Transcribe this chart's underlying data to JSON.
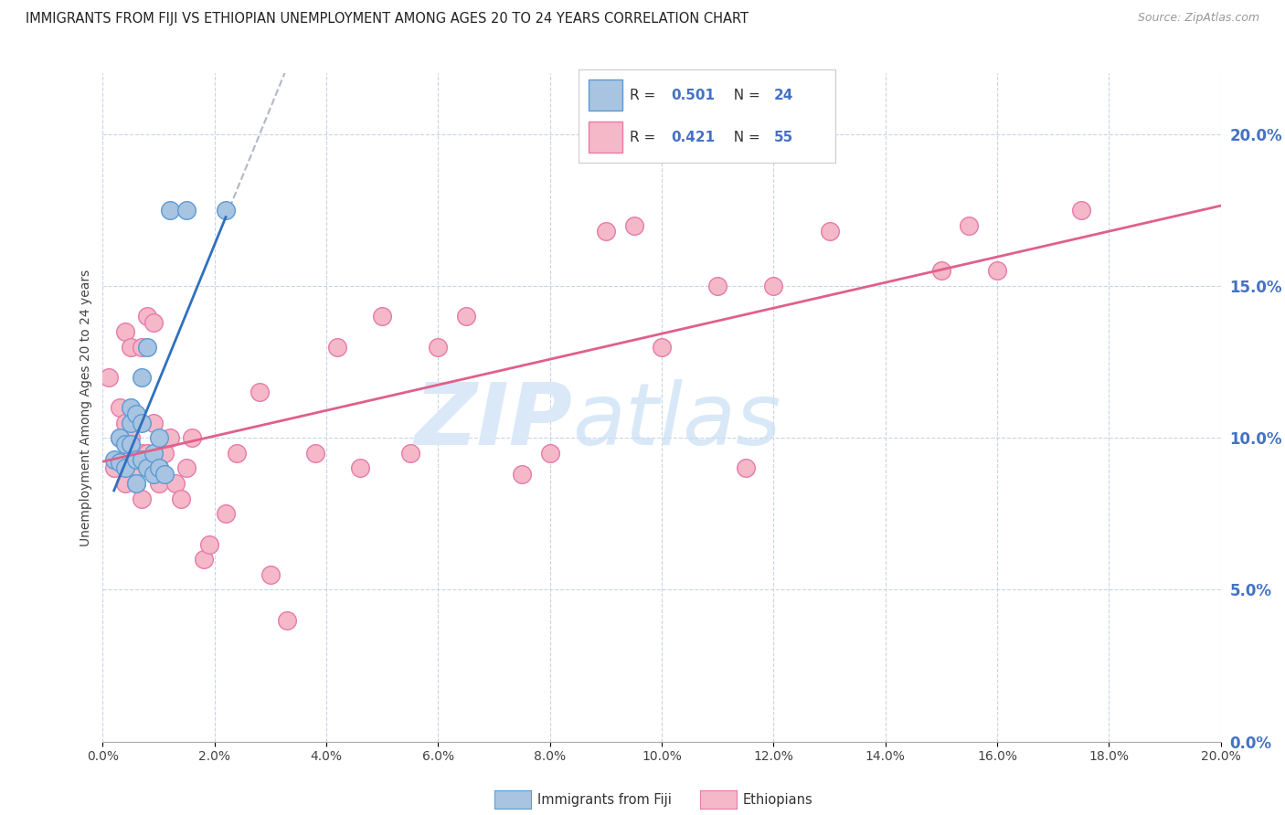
{
  "title": "IMMIGRANTS FROM FIJI VS ETHIOPIAN UNEMPLOYMENT AMONG AGES 20 TO 24 YEARS CORRELATION CHART",
  "source": "Source: ZipAtlas.com",
  "ylabel": "Unemployment Among Ages 20 to 24 years",
  "xlim": [
    0.0,
    0.2
  ],
  "ylim": [
    0.0,
    0.22
  ],
  "x_ticks": [
    0.0,
    0.02,
    0.04,
    0.06,
    0.08,
    0.1,
    0.12,
    0.14,
    0.16,
    0.18,
    0.2
  ],
  "y_ticks_right": [
    0.0,
    0.05,
    0.1,
    0.15,
    0.2
  ],
  "fiji_R": "0.501",
  "fiji_N": "24",
  "ethiopian_R": "0.421",
  "ethiopian_N": "55",
  "fiji_color": "#a8c4e0",
  "fiji_edge_color": "#5b9bd5",
  "ethiopian_color": "#f4b8c8",
  "ethiopian_edge_color": "#e87aaa",
  "trend_fiji_color": "#3070c0",
  "trend_ethiopian_color": "#e0608a",
  "trend_dashed_color": "#b0b8c8",
  "text_blue_color": "#4472c4",
  "fiji_scatter_x": [
    0.002,
    0.003,
    0.003,
    0.004,
    0.004,
    0.005,
    0.005,
    0.005,
    0.006,
    0.006,
    0.006,
    0.007,
    0.007,
    0.007,
    0.008,
    0.008,
    0.009,
    0.009,
    0.01,
    0.01,
    0.011,
    0.012,
    0.015,
    0.022
  ],
  "fiji_scatter_y": [
    0.093,
    0.092,
    0.1,
    0.09,
    0.098,
    0.105,
    0.11,
    0.098,
    0.108,
    0.085,
    0.093,
    0.093,
    0.105,
    0.12,
    0.09,
    0.13,
    0.088,
    0.095,
    0.09,
    0.1,
    0.088,
    0.175,
    0.175,
    0.175
  ],
  "ethiopian_scatter_x": [
    0.001,
    0.002,
    0.003,
    0.003,
    0.004,
    0.004,
    0.004,
    0.005,
    0.005,
    0.005,
    0.006,
    0.006,
    0.006,
    0.007,
    0.007,
    0.007,
    0.008,
    0.008,
    0.009,
    0.009,
    0.01,
    0.01,
    0.011,
    0.012,
    0.013,
    0.014,
    0.015,
    0.016,
    0.018,
    0.019,
    0.022,
    0.024,
    0.028,
    0.03,
    0.033,
    0.038,
    0.042,
    0.046,
    0.05,
    0.055,
    0.06,
    0.065,
    0.075,
    0.08,
    0.09,
    0.095,
    0.1,
    0.11,
    0.115,
    0.12,
    0.13,
    0.15,
    0.155,
    0.16,
    0.175
  ],
  "ethiopian_scatter_y": [
    0.12,
    0.09,
    0.1,
    0.11,
    0.135,
    0.085,
    0.105,
    0.095,
    0.13,
    0.1,
    0.09,
    0.095,
    0.085,
    0.08,
    0.095,
    0.13,
    0.14,
    0.095,
    0.138,
    0.105,
    0.09,
    0.085,
    0.095,
    0.1,
    0.085,
    0.08,
    0.09,
    0.1,
    0.06,
    0.065,
    0.075,
    0.095,
    0.115,
    0.055,
    0.04,
    0.095,
    0.13,
    0.09,
    0.14,
    0.095,
    0.13,
    0.14,
    0.088,
    0.095,
    0.168,
    0.17,
    0.13,
    0.15,
    0.09,
    0.15,
    0.168,
    0.155,
    0.17,
    0.155,
    0.175
  ],
  "background_color": "#ffffff",
  "grid_color": "#c8d4e8",
  "watermark_zip": "ZIP",
  "watermark_atlas": "atlas",
  "watermark_color": "#dae8f8"
}
